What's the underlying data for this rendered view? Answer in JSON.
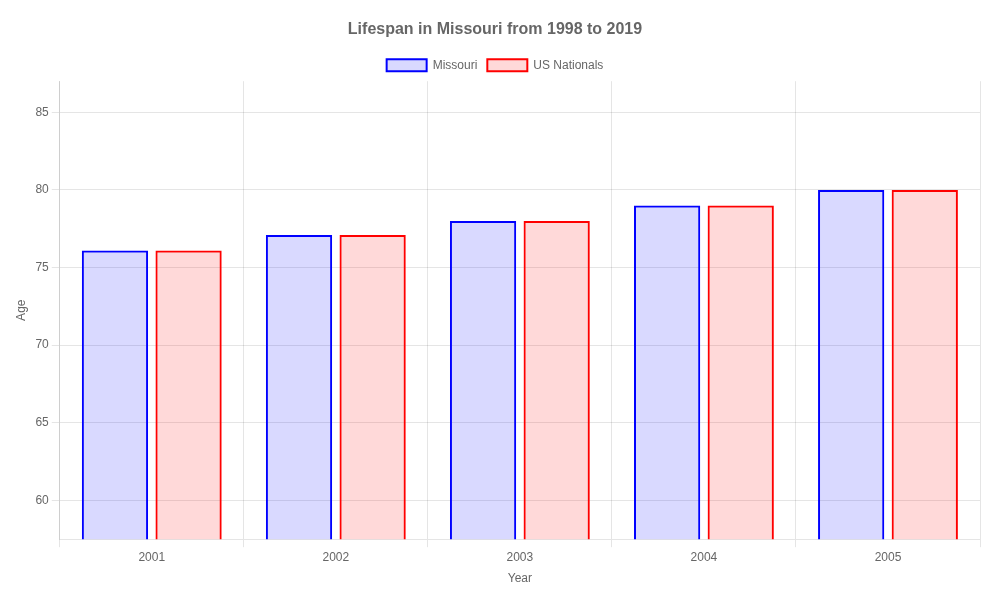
{
  "chart_data": {
    "type": "bar",
    "title": "Lifespan in Missouri from 1998 to 2019",
    "x_label": "Year",
    "y_label": "Age",
    "categories": [
      "2001",
      "2002",
      "2003",
      "2004",
      "2005"
    ],
    "series": [
      {
        "name": "Missouri",
        "color": "#0000ff",
        "values": [
          76.1,
          77.1,
          78.0,
          79.0,
          80.0
        ]
      },
      {
        "name": "US Nationals",
        "color": "#ff0000",
        "values": [
          76.1,
          77.1,
          78.0,
          79.0,
          80.0
        ]
      }
    ],
    "ylim": [
      57.5,
      87
    ],
    "yticks": [
      60,
      65,
      70,
      75,
      80,
      85
    ],
    "grid": true,
    "legend": "top"
  }
}
